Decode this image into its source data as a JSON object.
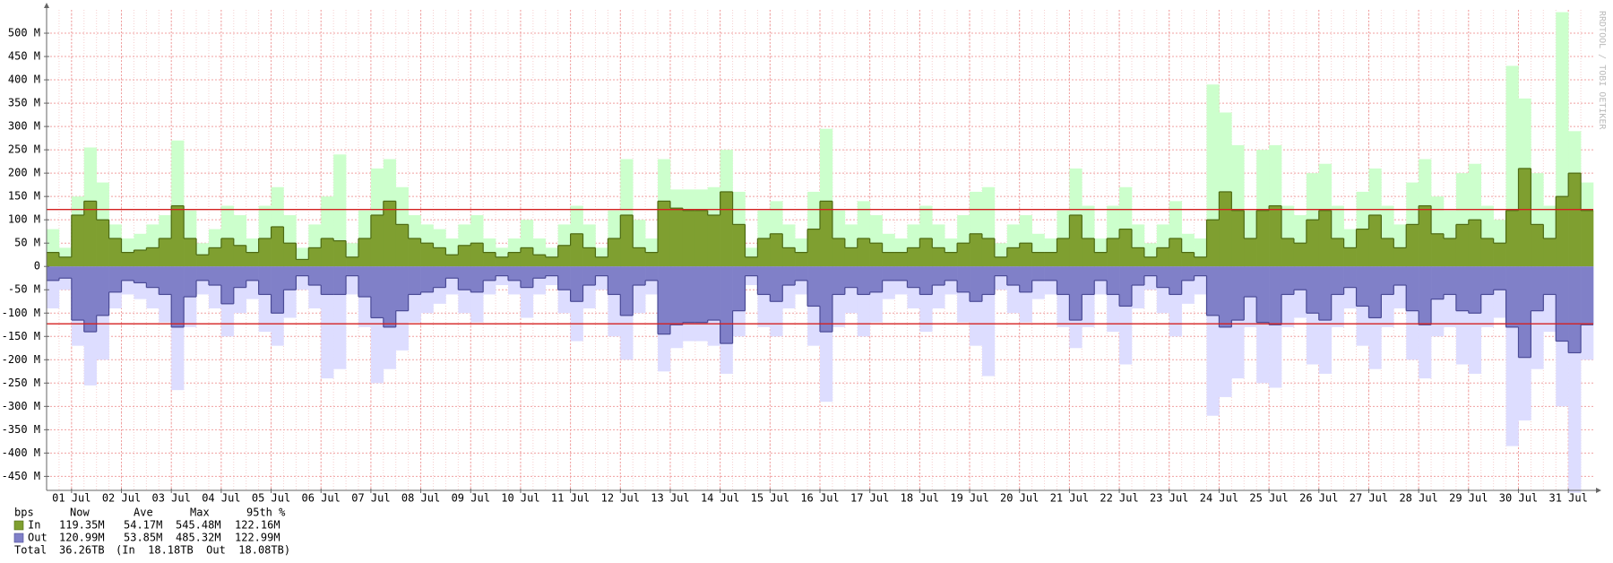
{
  "chart_data": {
    "type": "area",
    "watermark": "RRDTOOL / TOBI OETIKER",
    "grid": true,
    "x": [
      0.5,
      0.75,
      1,
      1.25,
      1.5,
      1.75,
      2,
      2.25,
      2.5,
      2.75,
      3,
      3.25,
      3.5,
      3.75,
      4,
      4.25,
      4.5,
      4.75,
      5,
      5.25,
      5.5,
      5.75,
      6,
      6.25,
      6.5,
      6.75,
      7,
      7.25,
      7.5,
      7.75,
      8,
      8.25,
      8.5,
      8.75,
      9,
      9.25,
      9.5,
      9.75,
      10,
      10.25,
      10.5,
      10.75,
      11,
      11.25,
      11.5,
      11.75,
      12,
      12.25,
      12.5,
      12.75,
      13,
      13.25,
      13.5,
      13.75,
      14,
      14.25,
      14.5,
      14.75,
      15,
      15.25,
      15.5,
      15.75,
      16,
      16.25,
      16.5,
      16.75,
      17,
      17.25,
      17.5,
      17.75,
      18,
      18.25,
      18.5,
      18.75,
      19,
      19.25,
      19.5,
      19.75,
      20,
      20.25,
      20.5,
      20.75,
      21,
      21.25,
      21.5,
      21.75,
      22,
      22.25,
      22.5,
      22.75,
      23,
      23.25,
      23.5,
      23.75,
      24,
      24.25,
      24.5,
      24.75,
      25,
      25.25,
      25.5,
      25.75,
      26,
      26.25,
      26.5,
      26.75,
      27,
      27.25,
      27.5,
      27.75,
      28,
      28.25,
      28.5,
      28.75,
      29,
      29.25,
      29.5,
      29.75,
      30,
      30.25,
      30.5,
      30.75,
      31,
      31.25
    ],
    "xlim": [
      0.5,
      31.5
    ],
    "xticks": [
      {
        "value": 1,
        "label": "01 Jul"
      },
      {
        "value": 2,
        "label": "02 Jul"
      },
      {
        "value": 3,
        "label": "03 Jul"
      },
      {
        "value": 4,
        "label": "04 Jul"
      },
      {
        "value": 5,
        "label": "05 Jul"
      },
      {
        "value": 6,
        "label": "06 Jul"
      },
      {
        "value": 7,
        "label": "07 Jul"
      },
      {
        "value": 8,
        "label": "08 Jul"
      },
      {
        "value": 9,
        "label": "09 Jul"
      },
      {
        "value": 10,
        "label": "10 Jul"
      },
      {
        "value": 11,
        "label": "11 Jul"
      },
      {
        "value": 12,
        "label": "12 Jul"
      },
      {
        "value": 13,
        "label": "13 Jul"
      },
      {
        "value": 14,
        "label": "14 Jul"
      },
      {
        "value": 15,
        "label": "15 Jul"
      },
      {
        "value": 16,
        "label": "16 Jul"
      },
      {
        "value": 17,
        "label": "17 Jul"
      },
      {
        "value": 18,
        "label": "18 Jul"
      },
      {
        "value": 19,
        "label": "19 Jul"
      },
      {
        "value": 20,
        "label": "20 Jul"
      },
      {
        "value": 21,
        "label": "21 Jul"
      },
      {
        "value": 22,
        "label": "22 Jul"
      },
      {
        "value": 23,
        "label": "23 Jul"
      },
      {
        "value": 24,
        "label": "24 Jul"
      },
      {
        "value": 25,
        "label": "25 Jul"
      },
      {
        "value": 26,
        "label": "26 Jul"
      },
      {
        "value": 27,
        "label": "27 Jul"
      },
      {
        "value": 28,
        "label": "28 Jul"
      },
      {
        "value": 29,
        "label": "29 Jul"
      },
      {
        "value": 30,
        "label": "30 Jul"
      },
      {
        "value": 31,
        "label": "31 Jul"
      }
    ],
    "ylim": [
      -480,
      550
    ],
    "yticks": [
      {
        "value": 500,
        "label": "500 M"
      },
      {
        "value": 450,
        "label": "450 M"
      },
      {
        "value": 400,
        "label": "400 M"
      },
      {
        "value": 350,
        "label": "350 M"
      },
      {
        "value": 300,
        "label": "300 M"
      },
      {
        "value": 250,
        "label": "250 M"
      },
      {
        "value": 200,
        "label": "200 M"
      },
      {
        "value": 150,
        "label": "150 M"
      },
      {
        "value": 100,
        "label": "100 M"
      },
      {
        "value": 50,
        "label": "50 M"
      },
      0,
      {
        "value": -50,
        "label": "-50 M"
      },
      {
        "value": -100,
        "label": "-100 M"
      },
      {
        "value": -150,
        "label": "-150 M"
      },
      {
        "value": -200,
        "label": "-200 M"
      },
      {
        "value": -250,
        "label": "-250 M"
      },
      {
        "value": -300,
        "label": "-300 M"
      },
      {
        "value": -350,
        "label": "-350 M"
      },
      {
        "value": -400,
        "label": "-400 M"
      },
      {
        "value": -450,
        "label": "-450 M"
      }
    ],
    "legend_header": [
      "bps",
      "Now",
      "Ave",
      "Max",
      "95th %"
    ],
    "series": [
      {
        "name": "In",
        "color": "#7f9f30",
        "line_color": "#4d6a12",
        "max_color": "#ccffcc",
        "now": "119.35M",
        "ave": "54.17M",
        "max": "545.48M",
        "p95": "122.16M",
        "p95_line": 122.16,
        "p95_color": "#d42020",
        "values": [
          30,
          20,
          110,
          140,
          100,
          60,
          30,
          35,
          40,
          60,
          130,
          60,
          25,
          40,
          60,
          45,
          30,
          60,
          85,
          50,
          15,
          40,
          60,
          55,
          20,
          60,
          110,
          140,
          90,
          60,
          50,
          40,
          25,
          45,
          50,
          30,
          20,
          30,
          40,
          25,
          20,
          45,
          70,
          40,
          20,
          60,
          110,
          40,
          30,
          140,
          125,
          120,
          120,
          110,
          160,
          90,
          20,
          60,
          70,
          40,
          30,
          80,
          140,
          60,
          40,
          60,
          50,
          30,
          30,
          40,
          60,
          40,
          30,
          50,
          70,
          60,
          20,
          40,
          50,
          30,
          30,
          60,
          110,
          60,
          30,
          60,
          80,
          40,
          20,
          40,
          60,
          30,
          20,
          100,
          160,
          120,
          60,
          120,
          130,
          60,
          50,
          100,
          120,
          60,
          40,
          80,
          110,
          60,
          40,
          90,
          130,
          70,
          60,
          90,
          100,
          60,
          50,
          120,
          210,
          90,
          60,
          150,
          200,
          120
        ],
        "max_values": [
          80,
          40,
          150,
          255,
          180,
          90,
          60,
          70,
          90,
          110,
          270,
          120,
          50,
          80,
          130,
          110,
          60,
          130,
          170,
          110,
          40,
          90,
          150,
          240,
          50,
          120,
          210,
          230,
          170,
          110,
          90,
          80,
          60,
          90,
          110,
          60,
          40,
          60,
          100,
          60,
          40,
          90,
          130,
          90,
          40,
          120,
          230,
          100,
          60,
          230,
          165,
          165,
          165,
          170,
          250,
          160,
          40,
          120,
          140,
          90,
          60,
          160,
          295,
          120,
          90,
          140,
          110,
          70,
          60,
          90,
          130,
          90,
          60,
          110,
          160,
          170,
          50,
          90,
          110,
          70,
          60,
          120,
          210,
          130,
          60,
          130,
          170,
          90,
          50,
          90,
          140,
          70,
          60,
          390,
          330,
          260,
          120,
          250,
          260,
          130,
          110,
          200,
          220,
          130,
          80,
          160,
          210,
          130,
          90,
          180,
          230,
          150,
          120,
          200,
          220,
          130,
          100,
          430,
          360,
          200,
          130,
          545,
          290,
          180
        ]
      },
      {
        "name": "Out",
        "color": "#8080c8",
        "line_color": "#4a4a96",
        "max_color": "#ddddff",
        "now": "120.99M",
        "ave": "53.85M",
        "max": "485.32M",
        "p95": "122.99M",
        "p95_line": -122.99,
        "p95_color": "#d42020",
        "values": [
          -30,
          -25,
          -115,
          -140,
          -105,
          -55,
          -30,
          -35,
          -45,
          -60,
          -130,
          -65,
          -30,
          -40,
          -80,
          -45,
          -30,
          -60,
          -100,
          -50,
          -20,
          -40,
          -60,
          -60,
          -20,
          -65,
          -110,
          -130,
          -95,
          -60,
          -55,
          -45,
          -25,
          -50,
          -55,
          -30,
          -20,
          -30,
          -45,
          -25,
          -20,
          -50,
          -75,
          -40,
          -20,
          -60,
          -105,
          -40,
          -30,
          -145,
          -125,
          -120,
          -120,
          -115,
          -165,
          -95,
          -20,
          -60,
          -75,
          -40,
          -30,
          -85,
          -140,
          -60,
          -45,
          -60,
          -55,
          -30,
          -30,
          -45,
          -60,
          -40,
          -30,
          -55,
          -75,
          -60,
          -20,
          -40,
          -55,
          -30,
          -30,
          -60,
          -115,
          -60,
          -30,
          -60,
          -85,
          -40,
          -20,
          -45,
          -60,
          -30,
          -20,
          -105,
          -130,
          -115,
          -65,
          -120,
          -125,
          -60,
          -50,
          -100,
          -115,
          -60,
          -45,
          -85,
          -110,
          -60,
          -40,
          -95,
          -125,
          -70,
          -60,
          -95,
          -100,
          -60,
          -50,
          -130,
          -195,
          -95,
          -60,
          -160,
          -185,
          -125
        ],
        "max_values": [
          -90,
          -50,
          -170,
          -255,
          -200,
          -90,
          -60,
          -70,
          -90,
          -120,
          -265,
          -130,
          -60,
          -90,
          -150,
          -100,
          -70,
          -140,
          -170,
          -110,
          -50,
          -90,
          -240,
          -220,
          -60,
          -130,
          -250,
          -220,
          -180,
          -120,
          -100,
          -80,
          -60,
          -100,
          -120,
          -60,
          -40,
          -60,
          -110,
          -60,
          -40,
          -100,
          -160,
          -90,
          -50,
          -150,
          -200,
          -100,
          -60,
          -225,
          -175,
          -160,
          -160,
          -170,
          -230,
          -150,
          -40,
          -130,
          -150,
          -90,
          -60,
          -170,
          -290,
          -130,
          -100,
          -150,
          -120,
          -70,
          -60,
          -90,
          -140,
          -90,
          -60,
          -120,
          -170,
          -235,
          -50,
          -100,
          -120,
          -70,
          -60,
          -130,
          -175,
          -130,
          -60,
          -140,
          -210,
          -90,
          -50,
          -100,
          -150,
          -80,
          -60,
          -320,
          -280,
          -240,
          -130,
          -250,
          -260,
          -130,
          -110,
          -210,
          -230,
          -130,
          -90,
          -170,
          -220,
          -130,
          -90,
          -200,
          -240,
          -150,
          -130,
          -210,
          -230,
          -130,
          -110,
          -385,
          -330,
          -220,
          -140,
          -300,
          -485,
          -200
        ]
      }
    ],
    "total": {
      "label": "Total",
      "value": "36.26TB",
      "breakdown": "(In  18.18TB  Out  18.08TB)"
    }
  }
}
